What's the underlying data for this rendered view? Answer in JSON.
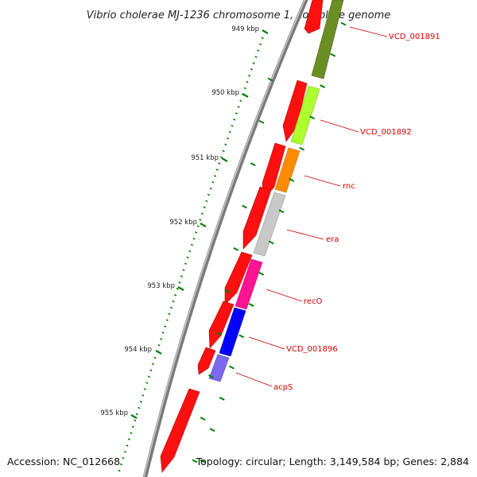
{
  "title": "Vibrio cholerae MJ-1236 chromosome 1, complete genome",
  "footer": {
    "accession": "Accession: NC_012668",
    "summary": "Topology: circular; Length: 3,149,584 bp; Genes: 2,884"
  },
  "ruler": {
    "kbp_labels": [
      "949 kbp",
      "950 kbp",
      "951 kbp",
      "952 kbp",
      "953 kbp",
      "954 kbp",
      "955 kbp"
    ]
  },
  "gene_labels": [
    {
      "name": "VCD_001891",
      "color": "#6b8e23"
    },
    {
      "name": "VCD_001892",
      "color": "#adff2f"
    },
    {
      "name": "rnc",
      "color": "#ff8c00"
    },
    {
      "name": "era",
      "color": "#c8c8c8"
    },
    {
      "name": "recO",
      "color": "#ff1493"
    },
    {
      "name": "VCD_001896",
      "color": "#0000ff"
    },
    {
      "name": "acpS",
      "color": "#7b68ee"
    }
  ],
  "colors": {
    "cds_track": "#ff0000",
    "label_line": "#cc0000",
    "tick": "#008000",
    "backbone": "#888888"
  }
}
